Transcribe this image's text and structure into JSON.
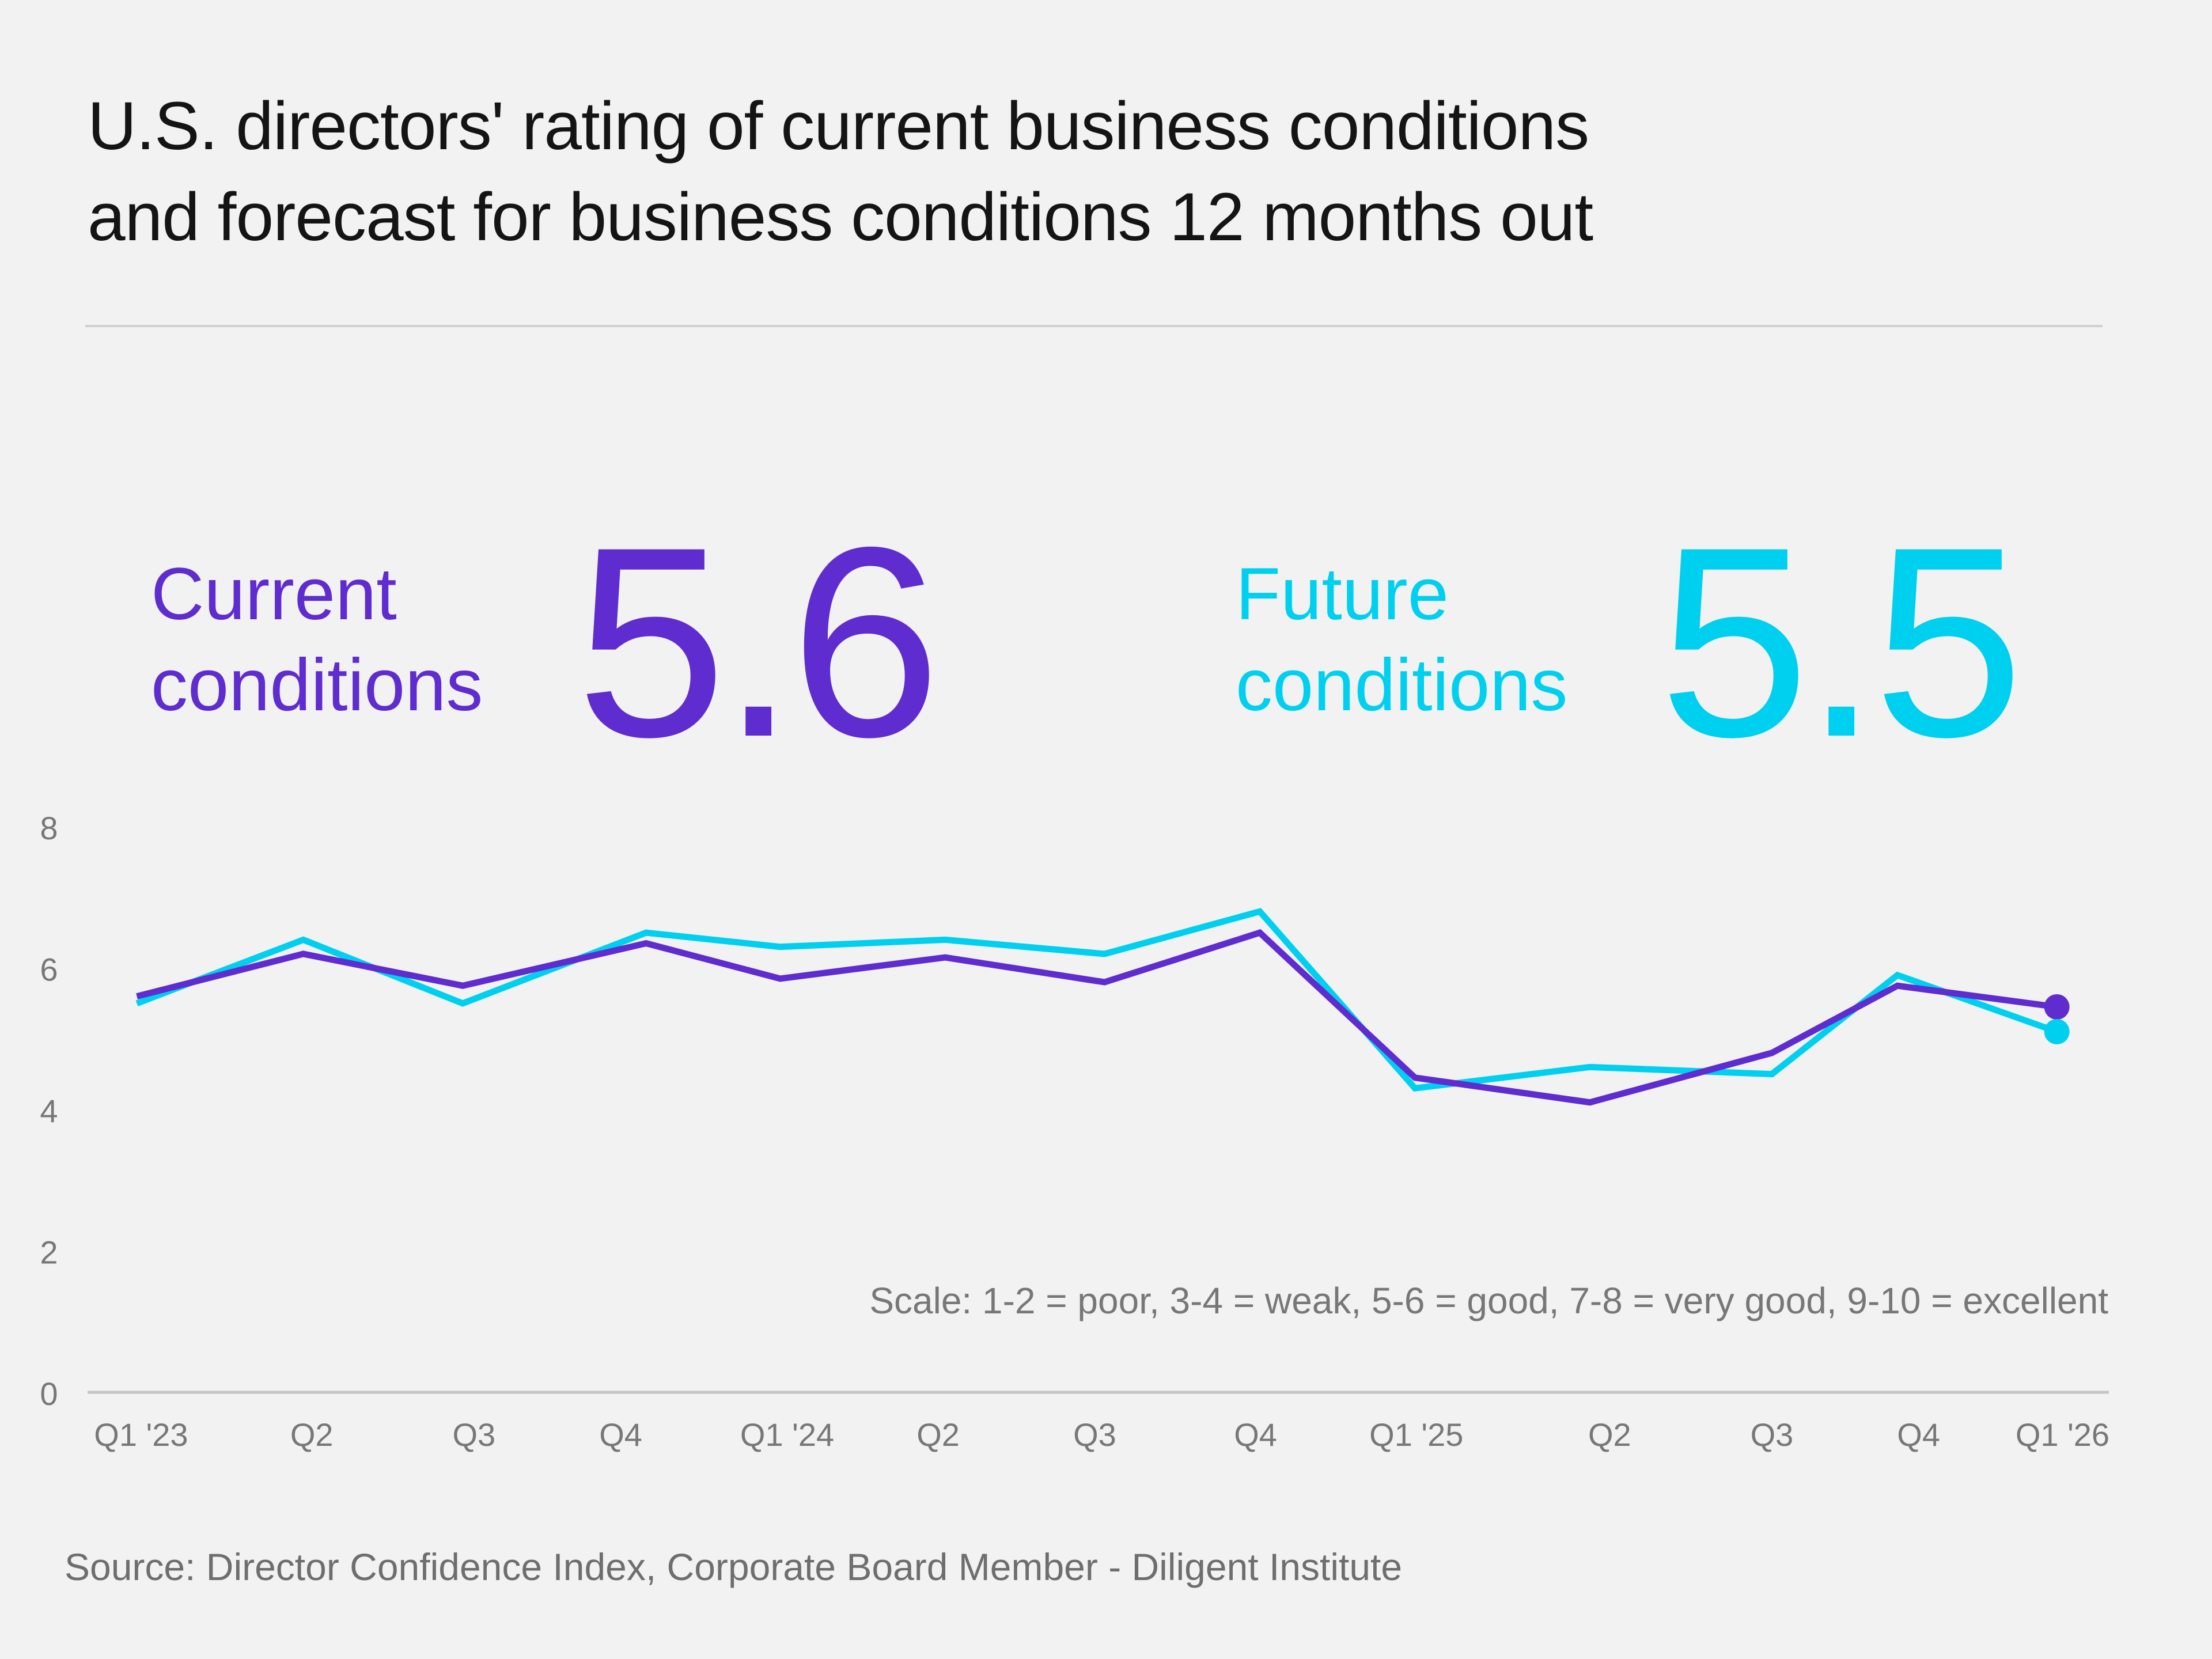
{
  "title_line1": "U.S. directors' rating of current business conditions",
  "title_line2": "and forecast for business conditions 12 months out",
  "kpis": {
    "current": {
      "label_line1": "Current",
      "label_line2": "conditions",
      "value": "5.6",
      "color": "#5f2ccf"
    },
    "future": {
      "label_line1": "Future",
      "label_line2": "conditions",
      "value": "5.5",
      "color": "#00d0ef"
    }
  },
  "source": "Source: Director Confidence Index, Corporate Board Member - Diligent Institute",
  "chart_data": {
    "type": "line",
    "categories": [
      "Q1 '23",
      "Q2",
      "Q3",
      "Q4",
      "Q1 '24",
      "Q2",
      "Q3",
      "Q4",
      "Q1 '25",
      "Q2",
      "Q3",
      "Q4",
      "Q1 '26"
    ],
    "series": [
      {
        "key": "current",
        "color": "#5f2ccf",
        "values": [
          5.6,
          6.2,
          5.75,
          6.35,
          5.85,
          6.15,
          5.8,
          6.5,
          4.45,
          4.1,
          4.8,
          5.75,
          5.45
        ]
      },
      {
        "key": "future",
        "color": "#00d0ef",
        "values": [
          5.5,
          6.4,
          5.5,
          6.5,
          6.3,
          6.4,
          6.2,
          6.8,
          4.3,
          4.6,
          4.5,
          5.9,
          5.1
        ]
      }
    ],
    "yticks": [
      "0",
      "2",
      "4",
      "6",
      "8"
    ],
    "ylim": [
      0,
      8
    ],
    "grid": false,
    "annotation": "Scale: 1-2 = poor, 3-4 = weak, 5-6 = good, 7-8 = very good, 9-10 = excellent"
  }
}
